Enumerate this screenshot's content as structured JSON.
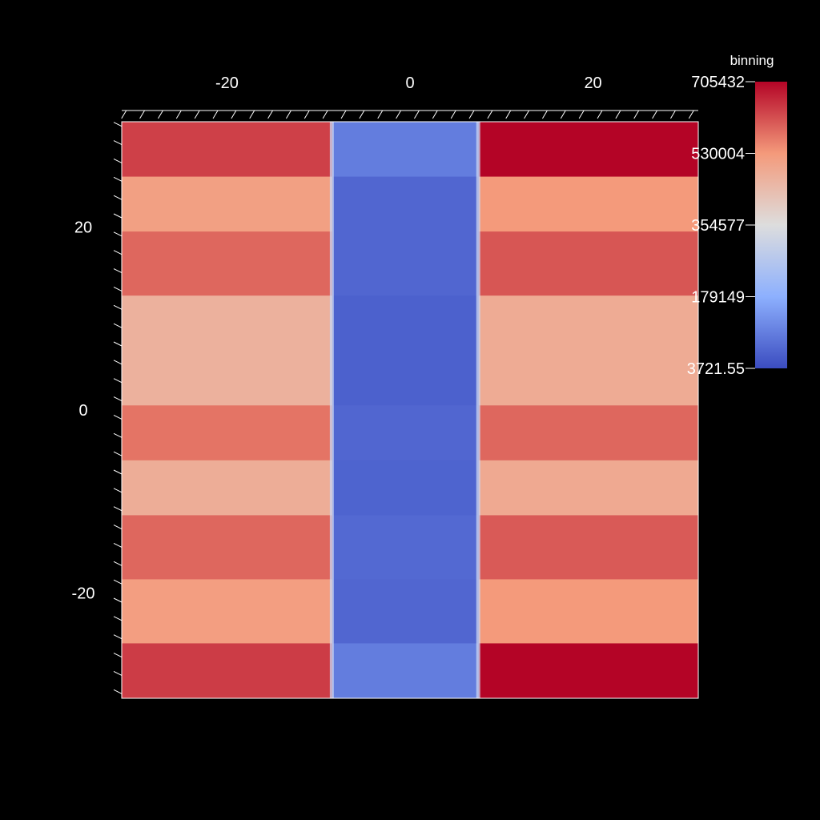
{
  "chart_data": {
    "type": "heatmap",
    "x_ticks": [
      -20,
      0,
      20
    ],
    "y_ticks": [
      20,
      0,
      -20
    ],
    "xlim": [
      -31.5,
      31.5
    ],
    "ylim": [
      -31.5,
      31.5
    ],
    "x_tick_labels": [
      "-20",
      "0",
      "20"
    ],
    "y_tick_labels": [
      "20",
      "0",
      "-20"
    ],
    "colorbar": {
      "title": "binning",
      "range": [
        3721.55,
        705432
      ],
      "tick_labels": [
        "705432",
        "530004",
        "354577",
        "179149",
        "3721.55"
      ],
      "tick_values": [
        705432,
        530004,
        354577,
        179149,
        3721.55
      ],
      "colormap": [
        "#3b4cc0",
        "#8db0fe",
        "#dddddd",
        "#f49a7b",
        "#b40426"
      ]
    },
    "columns": [
      {
        "x0": -31.5,
        "x1": -8.5,
        "region": "left"
      },
      {
        "x0": -8.5,
        "x1": 7.5,
        "region": "center"
      },
      {
        "x0": 7.5,
        "x1": 31.5,
        "region": "right"
      }
    ],
    "bands": [
      {
        "y0": 25.5,
        "y1": 31.5,
        "left": 635000,
        "center": 90000,
        "right": 705432
      },
      {
        "y0": 19.5,
        "y1": 25.5,
        "left": 515000,
        "center": 50000,
        "right": 530000
      },
      {
        "y0": 12.5,
        "y1": 19.5,
        "left": 590000,
        "center": 50000,
        "right": 610000
      },
      {
        "y0": 0.5,
        "y1": 12.5,
        "left": 470000,
        "center": 40000,
        "right": 485000
      },
      {
        "y0": -5.5,
        "y1": 0.5,
        "left": 575000,
        "center": 50000,
        "right": 590000
      },
      {
        "y0": -11.5,
        "y1": -5.5,
        "left": 480000,
        "center": 45000,
        "right": 490000
      },
      {
        "y0": -18.5,
        "y1": -11.5,
        "left": 590000,
        "center": 55000,
        "right": 605000
      },
      {
        "y0": -25.5,
        "y1": -18.5,
        "left": 520000,
        "center": 50000,
        "right": 530000
      },
      {
        "y0": -31.5,
        "y1": -25.5,
        "left": 640000,
        "center": 90000,
        "right": 705432
      }
    ]
  }
}
